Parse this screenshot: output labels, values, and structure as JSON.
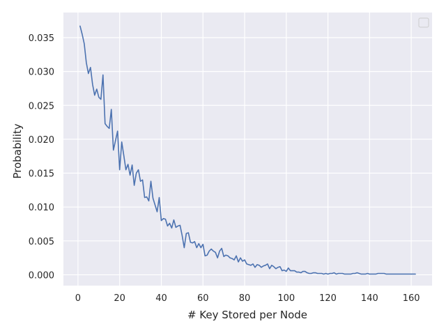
{
  "chart_data": {
    "type": "line",
    "title": "",
    "xlabel": "# Key Stored per Node",
    "ylabel": "Probability",
    "xlim": [
      -7,
      170
    ],
    "ylim": [
      -0.0016,
      0.0387
    ],
    "xticks": [
      0,
      20,
      40,
      60,
      80,
      100,
      120,
      140,
      160
    ],
    "xtick_labels": [
      "0",
      "20",
      "40",
      "60",
      "80",
      "100",
      "120",
      "140",
      "160"
    ],
    "yticks": [
      0.0,
      0.005,
      0.01,
      0.015,
      0.02,
      0.025,
      0.03,
      0.035
    ],
    "ytick_labels": [
      "0.000",
      "0.005",
      "0.010",
      "0.015",
      "0.020",
      "0.025",
      "0.030",
      "0.035"
    ],
    "grid": true,
    "legend": "top-right (empty)",
    "style": {
      "background": "#eaeaf2",
      "grid_color": "#ffffff",
      "line_color": "#4c72b0"
    },
    "series": [
      {
        "x": [
          1,
          2,
          3,
          4,
          5,
          6,
          7,
          8,
          9,
          10,
          11,
          12,
          13,
          14,
          15,
          16,
          17,
          18,
          19,
          20,
          21,
          22,
          23,
          24,
          25,
          26,
          27,
          28,
          29,
          30,
          31,
          32,
          33,
          34,
          35,
          36,
          37,
          38,
          39,
          40,
          41,
          42,
          43,
          44,
          45,
          46,
          47,
          48,
          49,
          50,
          51,
          52,
          53,
          54,
          55,
          56,
          57,
          58,
          59,
          60,
          61,
          62,
          63,
          64,
          65,
          66,
          67,
          68,
          69,
          70,
          71,
          72,
          73,
          74,
          75,
          76,
          77,
          78,
          79,
          80,
          81,
          82,
          83,
          84,
          85,
          86,
          87,
          88,
          89,
          90,
          91,
          92,
          93,
          94,
          95,
          96,
          97,
          98,
          99,
          100,
          101,
          102,
          103,
          104,
          105,
          106,
          107,
          108,
          109,
          110,
          111,
          112,
          113,
          114,
          115,
          116,
          117,
          118,
          119,
          120,
          121,
          122,
          123,
          124,
          125,
          126,
          127,
          128,
          129,
          130,
          131,
          132,
          133,
          134,
          135,
          136,
          137,
          138,
          139,
          140,
          141,
          142,
          143,
          144,
          145,
          146,
          147,
          148,
          149,
          150,
          155,
          162
        ],
        "values": [
          0.0367,
          0.0355,
          0.0341,
          0.0313,
          0.0297,
          0.0306,
          0.0281,
          0.0265,
          0.0274,
          0.0262,
          0.0259,
          0.0295,
          0.0223,
          0.0219,
          0.0216,
          0.0244,
          0.0184,
          0.0198,
          0.0212,
          0.0155,
          0.0196,
          0.0176,
          0.0155,
          0.0163,
          0.0147,
          0.0162,
          0.0132,
          0.015,
          0.0155,
          0.0138,
          0.014,
          0.0114,
          0.0115,
          0.0109,
          0.0138,
          0.0113,
          0.0103,
          0.0093,
          0.0114,
          0.008,
          0.0083,
          0.0082,
          0.0072,
          0.0076,
          0.0069,
          0.0081,
          0.007,
          0.0072,
          0.0073,
          0.0058,
          0.004,
          0.0061,
          0.0062,
          0.0048,
          0.0047,
          0.0049,
          0.004,
          0.0046,
          0.004,
          0.0045,
          0.0028,
          0.0029,
          0.0035,
          0.0038,
          0.0035,
          0.0033,
          0.0025,
          0.0035,
          0.0039,
          0.0027,
          0.0029,
          0.0028,
          0.0025,
          0.0024,
          0.0022,
          0.0028,
          0.0019,
          0.0025,
          0.002,
          0.0022,
          0.0016,
          0.0015,
          0.0014,
          0.0016,
          0.0011,
          0.0015,
          0.0014,
          0.0011,
          0.0013,
          0.0014,
          0.0016,
          0.0009,
          0.0014,
          0.0012,
          0.0009,
          0.0011,
          0.0012,
          0.0006,
          0.0007,
          0.0005,
          0.001,
          0.0006,
          0.0006,
          0.0006,
          0.0004,
          0.0004,
          0.0003,
          0.0005,
          0.0005,
          0.0003,
          0.0002,
          0.0002,
          0.0003,
          0.0003,
          0.0002,
          0.0002,
          0.0002,
          0.0001,
          0.0002,
          0.0001,
          0.0002,
          0.0002,
          0.0003,
          0.0001,
          0.0002,
          0.0002,
          0.0002,
          0.0001,
          0.0001,
          0.0001,
          0.0001,
          0.0002,
          0.0002,
          0.0003,
          0.0002,
          0.0001,
          0.0001,
          0.0001,
          0.0002,
          0.0001,
          0.0001,
          0.0001,
          0.0001,
          0.0002,
          0.0002,
          0.0002,
          0.0002,
          0.0001,
          0.0001,
          0.0001,
          0.0001,
          0.0001
        ]
      }
    ]
  }
}
